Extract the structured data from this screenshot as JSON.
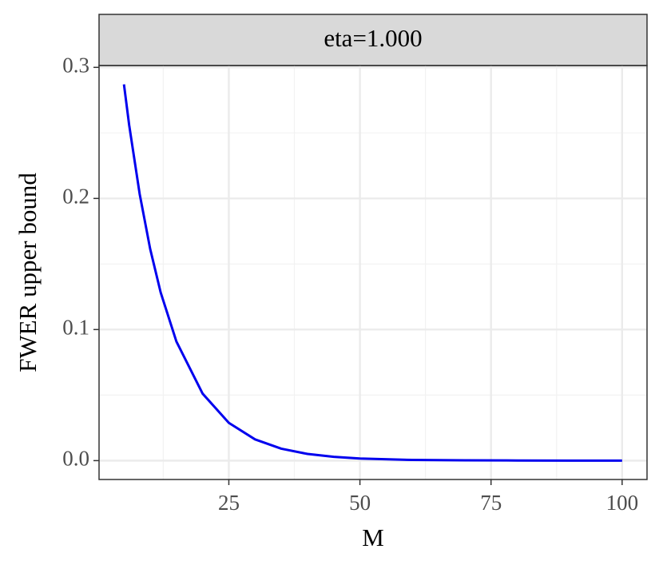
{
  "chart_data": {
    "type": "line",
    "strip_label": "eta=1.000",
    "x_label": "M",
    "y_label": "FWER upper bound",
    "x": [
      5,
      6,
      8,
      10,
      12,
      15,
      20,
      25,
      30,
      35,
      40,
      45,
      50,
      60,
      70,
      80,
      90,
      100
    ],
    "series": [
      {
        "color": "#0000ee",
        "values": [
          0.287,
          0.2558,
          0.2033,
          0.1615,
          0.1283,
          0.0909,
          0.0511,
          0.0288,
          0.0162,
          0.0091,
          0.0051,
          0.0029,
          0.0016,
          0.0005,
          0.0002,
          0.0001,
          3e-05,
          1e-05
        ]
      }
    ],
    "xlim": [
      0.25,
      104.75
    ],
    "ylim": [
      -0.0144,
      0.3014
    ],
    "xticks": [
      25,
      50,
      75,
      100
    ],
    "yticks": [
      {
        "value": 0,
        "label": "0.0"
      },
      0.1,
      0.2,
      0.3
    ],
    "xminor": [
      12.5,
      37.5,
      62.5,
      87.5
    ],
    "yminor": [
      0.05,
      0.15,
      0.25
    ],
    "grid": true
  }
}
